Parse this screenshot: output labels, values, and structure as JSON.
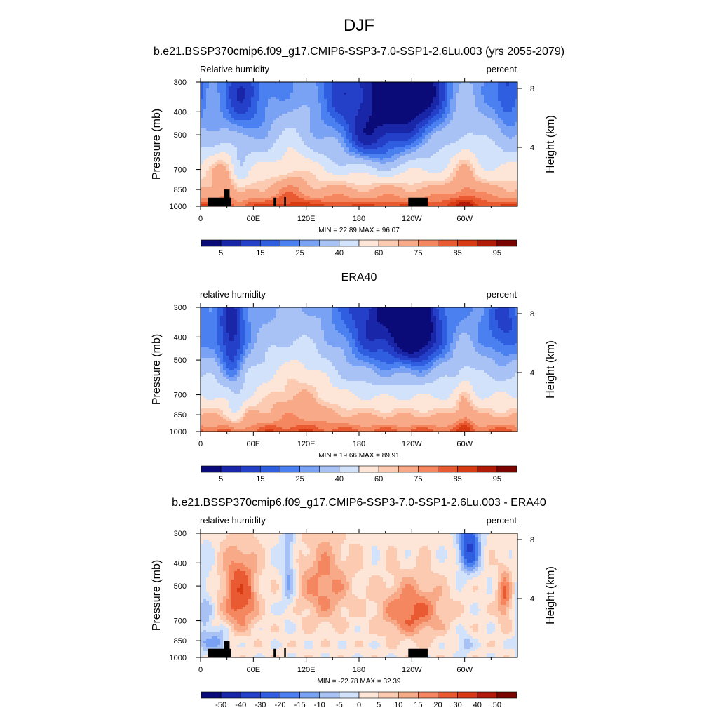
{
  "figure": {
    "title": "DJF"
  },
  "chart_data": [
    {
      "type": "heatmap",
      "title": "b.e21.BSSP370cmip6.f09_g17.CMIP6-SSP3-7.0-SSP1-2.6Lu.003 (yrs 2055-2079)",
      "left_string": "Relative humidity",
      "right_string": "percent",
      "ylabel": "Pressure (mb)",
      "y2label": "Height (km)",
      "xticks": [
        "0",
        "60E",
        "120E",
        "180",
        "120W",
        "60W"
      ],
      "xtick_values": [
        0,
        60,
        120,
        180,
        240,
        300
      ],
      "xlim": [
        0,
        360
      ],
      "yticks": [
        "300",
        "400",
        "500",
        "700",
        "850",
        "1000"
      ],
      "ytick_values": [
        300,
        400,
        500,
        700,
        850,
        1000
      ],
      "ylim": [
        1000,
        300
      ],
      "yscale": "log",
      "y2ticks": [
        "8",
        "4"
      ],
      "y2tick_values": [
        8,
        4
      ],
      "stats": "MIN =  22.89  MAX =  96.07",
      "colorbar": {
        "colors": [
          "#0a0a78",
          "#1a26a8",
          "#2440c8",
          "#2f5ee0",
          "#4a80f0",
          "#7aa2f4",
          "#a8c2f6",
          "#d2e2fa",
          "#fde6d8",
          "#fbcab0",
          "#f8aa88",
          "#f48660",
          "#ea5a32",
          "#d83a14",
          "#b01a06",
          "#7a0400"
        ],
        "labels": [
          "5",
          "15",
          "25",
          "40",
          "60",
          "75",
          "85",
          "95"
        ]
      },
      "field_mode": "model"
    },
    {
      "type": "heatmap",
      "title": "ERA40",
      "left_string": "relative humidity",
      "right_string": "percent",
      "ylabel": "Pressure (mb)",
      "y2label": "Height (km)",
      "xticks": [
        "0",
        "60E",
        "120E",
        "180",
        "120W",
        "60W"
      ],
      "xtick_values": [
        0,
        60,
        120,
        180,
        240,
        300
      ],
      "xlim": [
        0,
        360
      ],
      "yticks": [
        "300",
        "400",
        "500",
        "700",
        "850",
        "1000"
      ],
      "ytick_values": [
        300,
        400,
        500,
        700,
        850,
        1000
      ],
      "ylim": [
        1000,
        300
      ],
      "yscale": "log",
      "y2ticks": [
        "8",
        "4"
      ],
      "y2tick_values": [
        8,
        4
      ],
      "stats": "MIN =  19.66  MAX =  89.91",
      "colorbar": {
        "colors": [
          "#0a0a78",
          "#1a26a8",
          "#2440c8",
          "#2f5ee0",
          "#4a80f0",
          "#7aa2f4",
          "#a8c2f6",
          "#d2e2fa",
          "#fde6d8",
          "#fbcab0",
          "#f8aa88",
          "#f48660",
          "#ea5a32",
          "#d83a14",
          "#b01a06",
          "#7a0400"
        ],
        "labels": [
          "5",
          "15",
          "25",
          "40",
          "60",
          "75",
          "85",
          "95"
        ]
      },
      "field_mode": "obs"
    },
    {
      "type": "heatmap",
      "title": "b.e21.BSSP370cmip6.f09_g17.CMIP6-SSP3-7.0-SSP1-2.6Lu.003 - ERA40",
      "left_string": "relative humidity",
      "right_string": "percent",
      "ylabel": "Pressure (mb)",
      "y2label": "Height (km)",
      "xticks": [
        "0",
        "60E",
        "120E",
        "180",
        "120W",
        "60W"
      ],
      "xtick_values": [
        0,
        60,
        120,
        180,
        240,
        300
      ],
      "xlim": [
        0,
        360
      ],
      "yticks": [
        "300",
        "400",
        "500",
        "700",
        "850",
        "1000"
      ],
      "ytick_values": [
        300,
        400,
        500,
        700,
        850,
        1000
      ],
      "ylim": [
        1000,
        300
      ],
      "yscale": "log",
      "y2ticks": [
        "8",
        "4"
      ],
      "y2tick_values": [
        8,
        4
      ],
      "stats": "MIN = -22.78  MAX =  32.39",
      "colorbar": {
        "colors": [
          "#0a0a78",
          "#1a26a8",
          "#2440c8",
          "#2f5ee0",
          "#4a80f0",
          "#7aa2f4",
          "#a8c2f6",
          "#d2e2fa",
          "#fde6d8",
          "#fbcab0",
          "#f8aa88",
          "#f48660",
          "#ea5a32",
          "#d83a14",
          "#b01a06",
          "#7a0400"
        ],
        "labels": [
          "-50",
          "-40",
          "-30",
          "-20",
          "-15",
          "-10",
          "-5",
          "0",
          "5",
          "10",
          "15",
          "20",
          "30",
          "40",
          "50"
        ]
      },
      "field_mode": "diff"
    }
  ]
}
